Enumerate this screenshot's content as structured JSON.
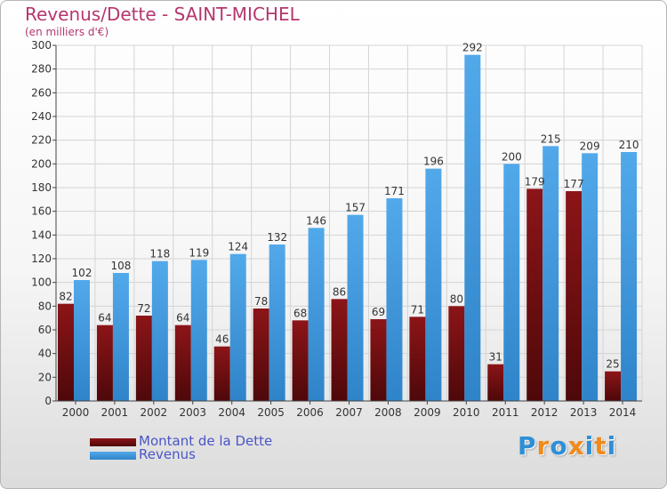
{
  "header": {
    "title": "Revenus/Dette - SAINT-MICHEL",
    "unit": "(en milliers d'€)"
  },
  "legend": {
    "dette_label": "Montant de la Dette",
    "revenus_label": "Revenus"
  },
  "logo": {
    "text": "Proxiti",
    "letter_colors": [
      "#2f8fd6",
      "#f08a1d",
      "#2f8fd6",
      "#f08a1d",
      "#2f8fd6",
      "#f08a1d",
      "#2f8fd6"
    ]
  },
  "colors": {
    "dette": "#7b0f12",
    "revenus": "#3b96dc",
    "title": "#b5366f",
    "legend_text": "#4a55c8"
  },
  "chart_data": {
    "type": "bar",
    "title": "Revenus/Dette - SAINT-MICHEL",
    "subtitle": "(en milliers d'€)",
    "categories": [
      "2000",
      "2001",
      "2002",
      "2003",
      "2004",
      "2005",
      "2006",
      "2007",
      "2008",
      "2009",
      "2010",
      "2011",
      "2012",
      "2013",
      "2014"
    ],
    "series": [
      {
        "name": "Montant de la Dette",
        "values": [
          82,
          64,
          72,
          64,
          46,
          78,
          68,
          86,
          69,
          71,
          80,
          31,
          179,
          177,
          25
        ]
      },
      {
        "name": "Revenus",
        "values": [
          102,
          108,
          118,
          119,
          124,
          132,
          146,
          157,
          171,
          196,
          292,
          200,
          215,
          209,
          210
        ]
      }
    ],
    "ylim": [
      0,
      300
    ],
    "yticks": [
      0,
      20,
      40,
      60,
      80,
      100,
      120,
      140,
      160,
      180,
      200,
      220,
      240,
      260,
      280,
      300
    ],
    "grid": true,
    "legend_position": "bottom-left"
  }
}
